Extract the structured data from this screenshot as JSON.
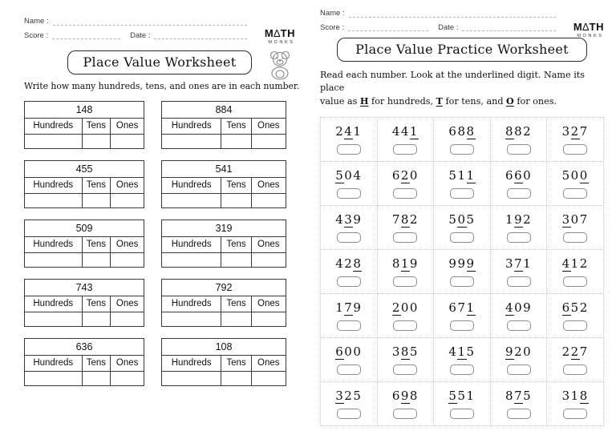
{
  "labels": {
    "name": "Name :",
    "score": "Score :",
    "date": "Date :"
  },
  "logo": {
    "m": "M",
    "triangle": "∆",
    "th": "TH",
    "monks": "MONKS"
  },
  "left_page": {
    "title": "Place Value Worksheet",
    "instruction": "Write how many hundreds, tens, and ones are in each number.",
    "table_headers": [
      "Hundreds",
      "Tens",
      "Ones"
    ],
    "numbers": [
      "148",
      "884",
      "455",
      "541",
      "509",
      "319",
      "743",
      "792",
      "636",
      "108"
    ]
  },
  "right_page": {
    "title": "Place Value Practice Worksheet",
    "instruction_line1": "Read each number. Look at the underlined digit. Name its place",
    "instruction_segments": {
      "s0": "value as ",
      "s1": "H",
      "s2": " for hundreds, ",
      "s3": "T",
      "s4": " for tens, and ",
      "s5": "O",
      "s6": " for ones."
    },
    "items": [
      {
        "n": "241",
        "u": 1
      },
      {
        "n": "441",
        "u": 2
      },
      {
        "n": "688",
        "u": 2
      },
      {
        "n": "882",
        "u": 0
      },
      {
        "n": "327",
        "u": 1
      },
      {
        "n": "504",
        "u": 0
      },
      {
        "n": "620",
        "u": 1
      },
      {
        "n": "511",
        "u": 2
      },
      {
        "n": "660",
        "u": 1
      },
      {
        "n": "500",
        "u": 2
      },
      {
        "n": "439",
        "u": 1
      },
      {
        "n": "782",
        "u": 1
      },
      {
        "n": "505",
        "u": 1
      },
      {
        "n": "192",
        "u": 1
      },
      {
        "n": "307",
        "u": 0
      },
      {
        "n": "428",
        "u": 2
      },
      {
        "n": "819",
        "u": 1
      },
      {
        "n": "999",
        "u": 2
      },
      {
        "n": "371",
        "u": 1
      },
      {
        "n": "412",
        "u": 0
      },
      {
        "n": "179",
        "u": 1
      },
      {
        "n": "200",
        "u": 0
      },
      {
        "n": "671",
        "u": 2
      },
      {
        "n": "409",
        "u": 0
      },
      {
        "n": "652",
        "u": 0
      },
      {
        "n": "600",
        "u": 0
      },
      {
        "n": "385",
        "u": 1
      },
      {
        "n": "415",
        "u": 1
      },
      {
        "n": "920",
        "u": 0
      },
      {
        "n": "227",
        "u": 1
      },
      {
        "n": "325",
        "u": 0
      },
      {
        "n": "698",
        "u": 1
      },
      {
        "n": "551",
        "u": 0
      },
      {
        "n": "875",
        "u": 1
      },
      {
        "n": "318",
        "u": 2
      }
    ]
  },
  "colors": {
    "ink": "#222222",
    "line": "#b5b5b5",
    "grid_dotted": "#c6c6c6",
    "box_border": "#8d8d8d"
  }
}
